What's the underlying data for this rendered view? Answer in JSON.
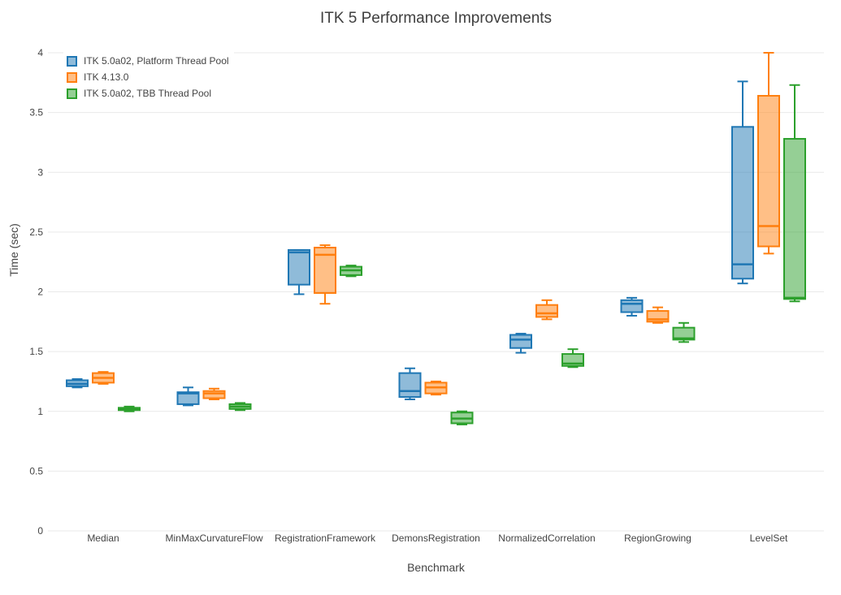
{
  "chart_data": {
    "type": "box",
    "title": "ITK 5 Performance Improvements",
    "xlabel": "Benchmark",
    "ylabel": "Time (sec)",
    "ylim": [
      0,
      4
    ],
    "ytick_labels": [
      "0",
      "0.5",
      "1",
      "1.5",
      "2",
      "2.5",
      "3",
      "3.5",
      "4"
    ],
    "grid": true,
    "legend_position": "top-left-inside",
    "background_color": "#ffffff",
    "gridline_color": "#e9e9e9",
    "text_color": "#444444",
    "categories": [
      "Median",
      "MinMaxCurvatureFlow",
      "RegistrationFramework",
      "DemonsRegistration",
      "NormalizedCorrelation",
      "RegionGrowing",
      "LevelSet"
    ],
    "series": [
      {
        "name": "ITK 5.0a02, Platform Thread Pool",
        "color": "#1f77b4",
        "boxes": [
          {
            "low": 1.2,
            "q1": 1.21,
            "median": 1.23,
            "q3": 1.26,
            "high": 1.27
          },
          {
            "low": 1.05,
            "q1": 1.06,
            "median": 1.15,
            "q3": 1.16,
            "high": 1.2
          },
          {
            "low": 1.98,
            "q1": 2.06,
            "median": 2.33,
            "q3": 2.35,
            "high": 2.35
          },
          {
            "low": 1.1,
            "q1": 1.12,
            "median": 1.17,
            "q3": 1.32,
            "high": 1.36
          },
          {
            "low": 1.49,
            "q1": 1.53,
            "median": 1.6,
            "q3": 1.64,
            "high": 1.65
          },
          {
            "low": 1.8,
            "q1": 1.83,
            "median": 1.9,
            "q3": 1.93,
            "high": 1.95
          },
          {
            "low": 2.07,
            "q1": 2.11,
            "median": 2.23,
            "q3": 3.38,
            "high": 3.76
          }
        ]
      },
      {
        "name": "ITK 4.13.0",
        "color": "#ff7f0e",
        "boxes": [
          {
            "low": 1.23,
            "q1": 1.24,
            "median": 1.28,
            "q3": 1.32,
            "high": 1.33
          },
          {
            "low": 1.1,
            "q1": 1.11,
            "median": 1.15,
            "q3": 1.17,
            "high": 1.19
          },
          {
            "low": 1.9,
            "q1": 1.99,
            "median": 2.31,
            "q3": 2.37,
            "high": 2.39
          },
          {
            "low": 1.14,
            "q1": 1.15,
            "median": 1.2,
            "q3": 1.24,
            "high": 1.25
          },
          {
            "low": 1.77,
            "q1": 1.79,
            "median": 1.82,
            "q3": 1.89,
            "high": 1.93
          },
          {
            "low": 1.74,
            "q1": 1.75,
            "median": 1.77,
            "q3": 1.84,
            "high": 1.87
          },
          {
            "low": 2.32,
            "q1": 2.38,
            "median": 2.55,
            "q3": 3.64,
            "high": 4.0
          }
        ]
      },
      {
        "name": "ITK 5.0a02, TBB Thread Pool",
        "color": "#2ca02c",
        "boxes": [
          {
            "low": 1.0,
            "q1": 1.01,
            "median": 1.02,
            "q3": 1.03,
            "high": 1.04
          },
          {
            "low": 1.01,
            "q1": 1.02,
            "median": 1.04,
            "q3": 1.06,
            "high": 1.07
          },
          {
            "low": 2.13,
            "q1": 2.14,
            "median": 2.18,
            "q3": 2.21,
            "high": 2.22
          },
          {
            "low": 0.89,
            "q1": 0.9,
            "median": 0.94,
            "q3": 0.99,
            "high": 1.0
          },
          {
            "low": 1.37,
            "q1": 1.38,
            "median": 1.4,
            "q3": 1.48,
            "high": 1.52
          },
          {
            "low": 1.58,
            "q1": 1.6,
            "median": 1.61,
            "q3": 1.7,
            "high": 1.74
          },
          {
            "low": 1.92,
            "q1": 1.94,
            "median": 1.95,
            "q3": 3.28,
            "high": 3.73
          }
        ]
      }
    ]
  }
}
